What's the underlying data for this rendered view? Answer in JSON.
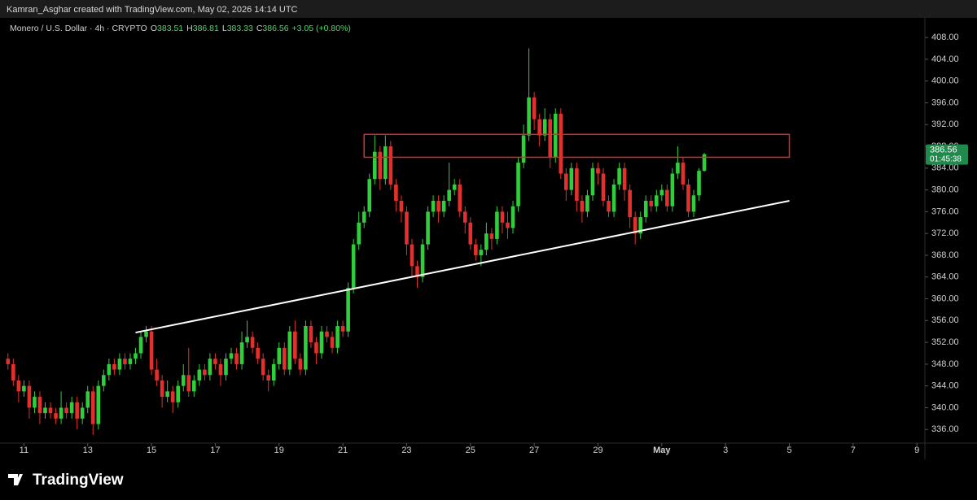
{
  "header": {
    "attribution": "Kamran_Asghar created with TradingView.com, May 02, 2026 14:14 UTC",
    "symbol": "Monero / U.S. Dollar · 4h · CRYPTO",
    "ohlc_keys": [
      "O",
      "H",
      "L",
      "C"
    ],
    "change": "+3.05 (+0.80%)",
    "countdown": "01:45:38",
    "brand": "TradingView"
  },
  "chart_data": {
    "type": "candlestick",
    "up_color": "#2fcf3c",
    "down_color": "#e3302c",
    "x": [
      "2026-04-10T12:00",
      "2026-04-10T16:00",
      "2026-04-10T20:00",
      "2026-04-11T00:00",
      "2026-04-11T04:00",
      "2026-04-11T08:00",
      "2026-04-11T12:00",
      "2026-04-11T16:00",
      "2026-04-11T20:00",
      "2026-04-12T00:00",
      "2026-04-12T04:00",
      "2026-04-12T08:00",
      "2026-04-12T12:00",
      "2026-04-12T16:00",
      "2026-04-12T20:00",
      "2026-04-13T00:00",
      "2026-04-13T04:00",
      "2026-04-13T08:00",
      "2026-04-13T12:00",
      "2026-04-13T16:00",
      "2026-04-13T20:00",
      "2026-04-14T00:00",
      "2026-04-14T04:00",
      "2026-04-14T08:00",
      "2026-04-14T12:00",
      "2026-04-14T16:00",
      "2026-04-14T20:00",
      "2026-04-15T00:00",
      "2026-04-15T04:00",
      "2026-04-15T08:00",
      "2026-04-15T12:00",
      "2026-04-15T16:00",
      "2026-04-15T20:00",
      "2026-04-16T00:00",
      "2026-04-16T04:00",
      "2026-04-16T08:00",
      "2026-04-16T12:00",
      "2026-04-16T16:00",
      "2026-04-16T20:00",
      "2026-04-17T00:00",
      "2026-04-17T04:00",
      "2026-04-17T08:00",
      "2026-04-17T12:00",
      "2026-04-17T16:00",
      "2026-04-17T20:00",
      "2026-04-18T00:00",
      "2026-04-18T04:00",
      "2026-04-18T08:00",
      "2026-04-18T12:00",
      "2026-04-18T16:00",
      "2026-04-18T20:00",
      "2026-04-19T00:00",
      "2026-04-19T04:00",
      "2026-04-19T08:00",
      "2026-04-19T12:00",
      "2026-04-19T16:00",
      "2026-04-19T20:00",
      "2026-04-20T00:00",
      "2026-04-20T04:00",
      "2026-04-20T08:00",
      "2026-04-20T12:00",
      "2026-04-20T16:00",
      "2026-04-20T20:00",
      "2026-04-21T00:00",
      "2026-04-21T04:00",
      "2026-04-21T08:00",
      "2026-04-21T12:00",
      "2026-04-21T16:00",
      "2026-04-21T20:00",
      "2026-04-22T00:00",
      "2026-04-22T04:00",
      "2026-04-22T08:00",
      "2026-04-22T12:00",
      "2026-04-22T16:00",
      "2026-04-22T20:00",
      "2026-04-23T00:00",
      "2026-04-23T04:00",
      "2026-04-23T08:00",
      "2026-04-23T12:00",
      "2026-04-23T16:00",
      "2026-04-23T20:00",
      "2026-04-24T00:00",
      "2026-04-24T04:00",
      "2026-04-24T08:00",
      "2026-04-24T12:00",
      "2026-04-24T16:00",
      "2026-04-24T20:00",
      "2026-04-25T00:00",
      "2026-04-25T04:00",
      "2026-04-25T08:00",
      "2026-04-25T12:00",
      "2026-04-25T16:00",
      "2026-04-25T20:00",
      "2026-04-26T00:00",
      "2026-04-26T04:00",
      "2026-04-26T08:00",
      "2026-04-26T12:00",
      "2026-04-26T16:00",
      "2026-04-26T20:00",
      "2026-04-27T00:00",
      "2026-04-27T04:00",
      "2026-04-27T08:00",
      "2026-04-27T12:00",
      "2026-04-27T16:00",
      "2026-04-27T20:00",
      "2026-04-28T00:00",
      "2026-04-28T04:00",
      "2026-04-28T08:00",
      "2026-04-28T12:00",
      "2026-04-28T16:00",
      "2026-04-28T20:00",
      "2026-04-29T00:00",
      "2026-04-29T04:00",
      "2026-04-29T08:00",
      "2026-04-29T12:00",
      "2026-04-29T16:00",
      "2026-04-29T20:00",
      "2026-04-30T00:00",
      "2026-04-30T04:00",
      "2026-04-30T08:00",
      "2026-04-30T12:00",
      "2026-04-30T16:00",
      "2026-04-30T20:00",
      "2026-05-01T00:00",
      "2026-05-01T04:00",
      "2026-05-01T08:00",
      "2026-05-01T12:00",
      "2026-05-01T16:00",
      "2026-05-01T20:00",
      "2026-05-02T00:00",
      "2026-05-02T04:00",
      "2026-05-02T08:00"
    ],
    "open": [
      349,
      348,
      345,
      343,
      344,
      340,
      342,
      339,
      340,
      339,
      338,
      340,
      339,
      341,
      338,
      340,
      343,
      337,
      344,
      346,
      348,
      347,
      349,
      348,
      349,
      350,
      353,
      354,
      347,
      345,
      342,
      343,
      341,
      344,
      346,
      343,
      345,
      347,
      346,
      349,
      348,
      346,
      349,
      350,
      348,
      352,
      353,
      351,
      349,
      346,
      345,
      348,
      351,
      347,
      354,
      349,
      347,
      355,
      352,
      350,
      354,
      353,
      351,
      355,
      354,
      362,
      370,
      374,
      376,
      382,
      387,
      382,
      388,
      381,
      378,
      376,
      370,
      366,
      364,
      370,
      376,
      378,
      376,
      378,
      380,
      381,
      376,
      374,
      370,
      368,
      369,
      372,
      371,
      376,
      374,
      373,
      377,
      385,
      390,
      397,
      393,
      390,
      393,
      386,
      394,
      383,
      380,
      384,
      378,
      376,
      379,
      384,
      383,
      378,
      376,
      381,
      384,
      380,
      375,
      372,
      375,
      378,
      377,
      379,
      380,
      377,
      383,
      385,
      381,
      376,
      379,
      383.51
    ],
    "high": [
      350,
      349,
      346,
      345,
      345,
      343,
      343,
      341,
      341,
      340,
      343,
      341,
      342,
      342,
      341,
      344,
      344,
      345,
      347,
      349,
      349,
      350,
      350,
      350,
      351,
      354,
      355,
      355,
      349,
      346,
      345,
      344,
      345,
      348,
      351,
      346,
      348,
      348,
      350,
      350,
      349,
      350,
      351,
      351,
      354,
      356,
      354,
      352,
      350,
      347,
      349,
      352,
      352,
      355,
      356,
      350,
      356,
      356,
      353,
      355,
      355,
      354,
      356,
      356,
      363,
      371,
      376,
      377,
      383,
      390,
      388,
      390,
      389,
      382,
      379,
      377,
      371,
      367,
      371,
      377,
      379,
      379,
      379,
      385,
      382,
      382,
      377,
      375,
      371,
      370,
      374,
      373,
      377,
      377,
      376,
      378,
      386,
      392,
      406,
      398,
      394,
      395,
      394,
      395,
      395,
      384,
      385,
      385,
      379,
      380,
      385,
      385,
      384,
      379,
      382,
      385,
      385,
      381,
      376,
      376,
      379,
      379,
      380,
      381,
      381,
      384,
      388,
      386,
      382,
      380,
      384,
      386.81
    ],
    "low": [
      347,
      344,
      341,
      342,
      338,
      339,
      337,
      338,
      338,
      337,
      337,
      338,
      338,
      336,
      337,
      339,
      335,
      336,
      343,
      345,
      346,
      346,
      347,
      347,
      348,
      349,
      352,
      346,
      344,
      340,
      341,
      339,
      340,
      343,
      342,
      342,
      344,
      345,
      345,
      347,
      344,
      345,
      348,
      347,
      347,
      351,
      350,
      348,
      345,
      343,
      344,
      347,
      346,
      346,
      348,
      346,
      346,
      351,
      348,
      349,
      352,
      350,
      350,
      353,
      353,
      361,
      369,
      373,
      375,
      381,
      380,
      381,
      380,
      376,
      374,
      368,
      364,
      362,
      363,
      369,
      375,
      374,
      375,
      377,
      379,
      375,
      372,
      369,
      367,
      366,
      368,
      369,
      370,
      372,
      371,
      372,
      376,
      384,
      389,
      391,
      388,
      389,
      384,
      385,
      382,
      378,
      379,
      376,
      374,
      375,
      378,
      381,
      377,
      375,
      375,
      380,
      378,
      373,
      370,
      371,
      374,
      376,
      376,
      378,
      376,
      376,
      382,
      380,
      375,
      375,
      378,
      383.33
    ],
    "close": [
      348,
      345,
      343,
      344,
      340,
      342,
      339,
      340,
      339,
      338,
      340,
      339,
      341,
      338,
      340,
      343,
      337,
      344,
      346,
      348,
      347,
      349,
      348,
      349,
      350,
      353,
      354,
      347,
      345,
      342,
      343,
      341,
      344,
      346,
      343,
      345,
      347,
      346,
      349,
      348,
      346,
      349,
      350,
      348,
      352,
      353,
      351,
      349,
      346,
      345,
      348,
      351,
      347,
      354,
      349,
      347,
      355,
      352,
      350,
      354,
      353,
      351,
      355,
      354,
      362,
      370,
      374,
      376,
      382,
      387,
      382,
      388,
      381,
      378,
      376,
      370,
      366,
      364,
      370,
      376,
      378,
      376,
      378,
      380,
      381,
      376,
      374,
      370,
      368,
      369,
      372,
      371,
      376,
      374,
      373,
      377,
      385,
      390,
      397,
      393,
      390,
      393,
      386,
      394,
      383,
      380,
      384,
      378,
      376,
      379,
      384,
      383,
      378,
      376,
      381,
      384,
      380,
      375,
      372,
      375,
      378,
      377,
      379,
      380,
      377,
      383,
      385,
      381,
      376,
      379,
      383.51,
      386.56
    ],
    "zone": {
      "x": [
        "2026-04-21T16:00",
        "2026-05-05T00:00"
      ],
      "y": [
        386,
        390.2
      ],
      "color": "#d32f2f"
    },
    "trendline": {
      "x": [
        "2026-04-14T12:00",
        "2026-05-05T00:00"
      ],
      "y": [
        353.8,
        378
      ],
      "color": "#ffffff"
    },
    "xlim": [
      "2026-04-10T06:00",
      "2026-05-09T06:00"
    ],
    "xticks": [
      {
        "value": "2026-04-11T00:00",
        "label": "11"
      },
      {
        "value": "2026-04-13T00:00",
        "label": "13"
      },
      {
        "value": "2026-04-15T00:00",
        "label": "15"
      },
      {
        "value": "2026-04-17T00:00",
        "label": "17"
      },
      {
        "value": "2026-04-19T00:00",
        "label": "19"
      },
      {
        "value": "2026-04-21T00:00",
        "label": "21"
      },
      {
        "value": "2026-04-23T00:00",
        "label": "23"
      },
      {
        "value": "2026-04-25T00:00",
        "label": "25"
      },
      {
        "value": "2026-04-27T00:00",
        "label": "27"
      },
      {
        "value": "2026-04-29T00:00",
        "label": "29"
      },
      {
        "value": "2026-05-01T00:00",
        "label": "May"
      },
      {
        "value": "2026-05-03T00:00",
        "label": "3"
      },
      {
        "value": "2026-05-05T00:00",
        "label": "5"
      },
      {
        "value": "2026-05-07T00:00",
        "label": "7"
      },
      {
        "value": "2026-05-09T00:00",
        "label": "9"
      }
    ],
    "ylim": [
      333.5,
      411.6
    ],
    "yticks": [
      {
        "value": 336,
        "label": "336.00"
      },
      {
        "value": 340,
        "label": "340.00"
      },
      {
        "value": 344,
        "label": "344.00"
      },
      {
        "value": 348,
        "label": "348.00"
      },
      {
        "value": 352,
        "label": "352.00"
      },
      {
        "value": 356,
        "label": "356.00"
      },
      {
        "value": 360,
        "label": "360.00"
      },
      {
        "value": 364,
        "label": "364.00"
      },
      {
        "value": 368,
        "label": "368.00"
      },
      {
        "value": 372,
        "label": "372.00"
      },
      {
        "value": 376,
        "label": "376.00"
      },
      {
        "value": 380,
        "label": "380.00"
      },
      {
        "value": 384,
        "label": "384.00"
      },
      {
        "value": 388,
        "label": "388.00"
      },
      {
        "value": 392,
        "label": "392.00"
      },
      {
        "value": 396,
        "label": "396.00"
      },
      {
        "value": 400,
        "label": "400.00"
      },
      {
        "value": 404,
        "label": "404.00"
      },
      {
        "value": 408,
        "label": "408.00"
      }
    ]
  }
}
